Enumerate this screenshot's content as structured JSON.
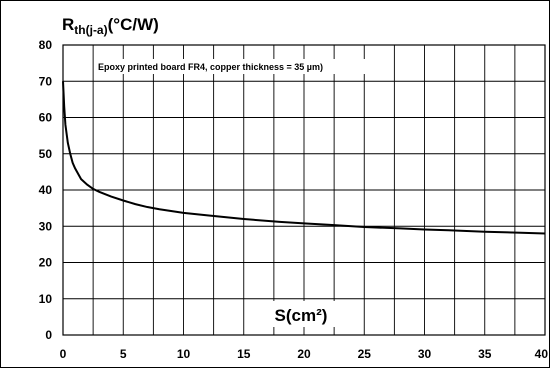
{
  "chart_data": {
    "type": "line",
    "title": "",
    "ylabel": {
      "main": "R",
      "sub": "th(j-a)",
      "unit": "(°C/W)"
    },
    "xlabel": "S(cm²)",
    "annotation": "Epoxy printed board FR4, copper thickness = 35 µm)",
    "xlim": [
      0,
      40
    ],
    "ylim": [
      0,
      80
    ],
    "x_ticks": [
      "0",
      "5",
      "10",
      "15",
      "20",
      "25",
      "30",
      "35",
      "40"
    ],
    "y_ticks": [
      "0",
      "10",
      "20",
      "30",
      "40",
      "50",
      "60",
      "70",
      "80"
    ],
    "grid": true,
    "grid_x_step": 2.5,
    "grid_y_step": 10,
    "series": [
      {
        "color": "#000000",
        "x": [
          0,
          0.1,
          0.2,
          0.4,
          0.6,
          0.8,
          1,
          1.5,
          2,
          2.5,
          3,
          4,
          5,
          6,
          7,
          8,
          10,
          12,
          15,
          18,
          20,
          22,
          25,
          28,
          30,
          32,
          35,
          38,
          40
        ],
        "y": [
          70,
          63,
          58,
          53,
          50,
          47.5,
          46,
          43,
          41.5,
          40.3,
          39.5,
          38.2,
          37.1,
          36.1,
          35.3,
          34.7,
          33.7,
          33,
          32,
          31.2,
          30.8,
          30.4,
          29.8,
          29.4,
          29.1,
          28.9,
          28.5,
          28.2,
          28
        ]
      }
    ]
  }
}
